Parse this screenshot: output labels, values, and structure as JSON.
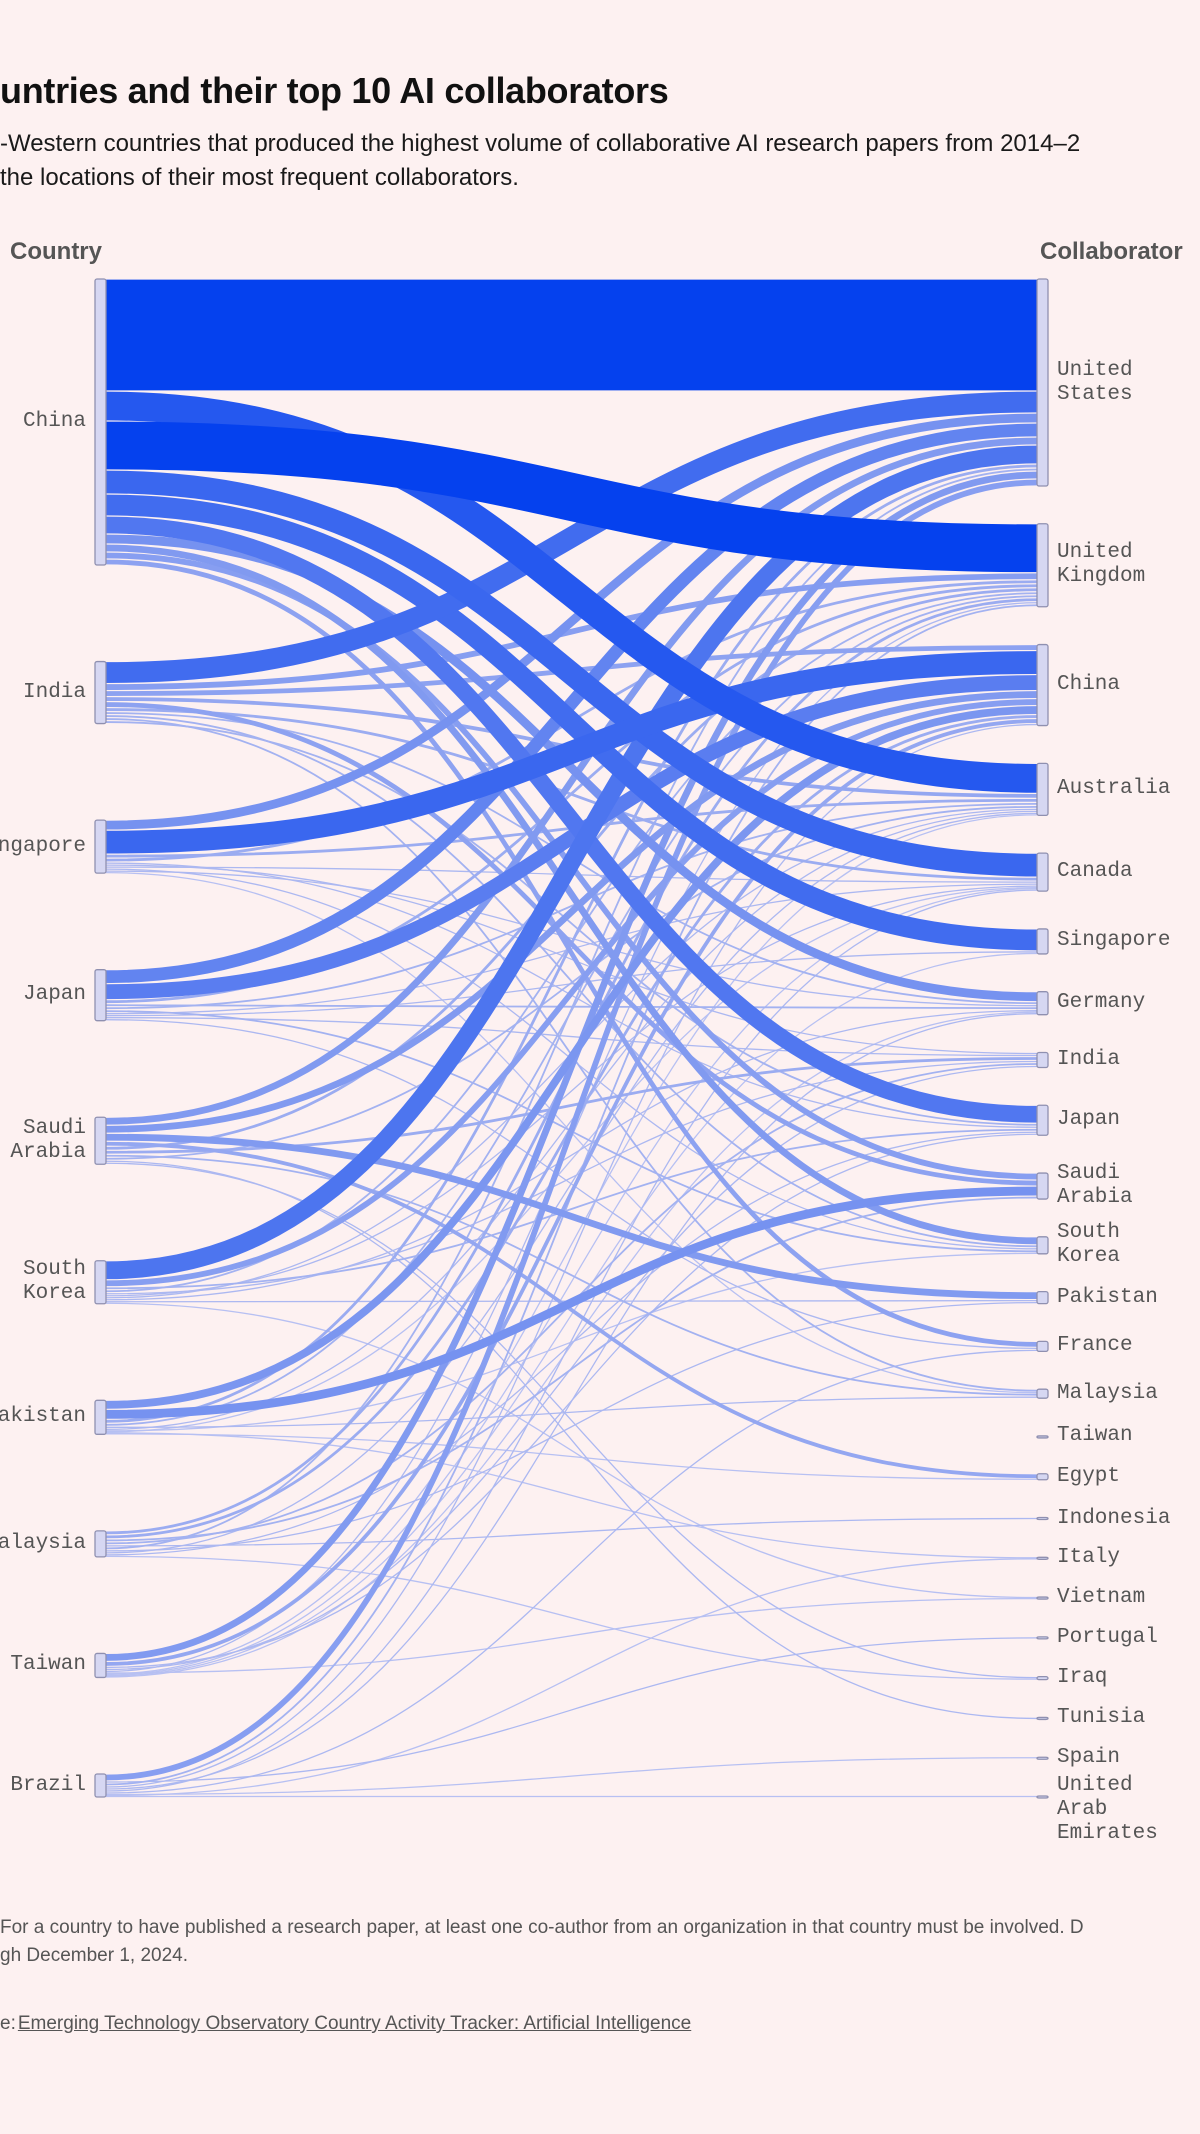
{
  "header": {
    "title_visible": "untries and their top 10 AI collaborators",
    "subtitle_line1_visible": "-Western countries that produced the highest volume of collaborative AI research papers from 2014–2",
    "subtitle_line2_visible": "the locations of their most frequent collaborators."
  },
  "footer": {
    "note_line1_visible": "For a country to have published a research paper, at least one co-author from an organization in that country must be involved. D",
    "note_line2_visible": "gh December 1, 2024.",
    "source_prefix_visible": "e: ",
    "source_link": "Emerging Technology Observatory Country Activity Tracker: Artificial Intelligence"
  },
  "colors": {
    "background": "#fdf1f1",
    "flow_strong": "#0541ee",
    "flow_light": "#cdd0f2",
    "node_fill": "#d6d7f2",
    "node_stroke": "#8f90b0"
  },
  "chart_data": {
    "type": "sankey",
    "left_axis_label": "Country",
    "right_axis_label": "Collaborator",
    "value_note": "relative link weights estimated from band thickness",
    "sources": [
      "China",
      "India",
      "Singapore",
      "Japan",
      "Saudi\nArabia",
      "South\nKorea",
      "Pakistan",
      "Malaysia",
      "Taiwan",
      "Brazil"
    ],
    "targets": [
      "United\nStates",
      "United\nKingdom",
      "China",
      "Australia",
      "Canada",
      "Singapore",
      "Germany",
      "India",
      "Japan",
      "Saudi\nArabia",
      "South\nKorea",
      "Pakistan",
      "France",
      "Malaysia",
      "Taiwan",
      "Egypt",
      "Indonesia",
      "Italy",
      "Vietnam",
      "Portugal",
      "Iraq",
      "Tunisia",
      "Spain",
      "United\nArab\nEmirates"
    ],
    "links": [
      [
        "China",
        "United\nStates",
        112
      ],
      [
        "China",
        "Australia",
        30
      ],
      [
        "China",
        "United\nKingdom",
        49
      ],
      [
        "China",
        "Canada",
        24
      ],
      [
        "China",
        "Singapore",
        22
      ],
      [
        "China",
        "Japan",
        18
      ],
      [
        "China",
        "Germany",
        10
      ],
      [
        "China",
        "South\nKorea",
        8
      ],
      [
        "China",
        "Saudi\nArabia",
        7
      ],
      [
        "China",
        "France",
        6
      ],
      [
        "India",
        "United\nStates",
        22
      ],
      [
        "India",
        "United\nKingdom",
        7
      ],
      [
        "India",
        "China",
        6
      ],
      [
        "India",
        "Australia",
        5
      ],
      [
        "India",
        "Saudi\nArabia",
        6
      ],
      [
        "India",
        "Canada",
        4
      ],
      [
        "India",
        "Germany",
        3
      ],
      [
        "India",
        "South\nKorea",
        3
      ],
      [
        "India",
        "Malaysia",
        3
      ],
      [
        "India",
        "Japan",
        3
      ],
      [
        "Singapore",
        "United\nStates",
        10
      ],
      [
        "Singapore",
        "China",
        24
      ],
      [
        "Singapore",
        "Australia",
        4
      ],
      [
        "Singapore",
        "United\nKingdom",
        4
      ],
      [
        "Singapore",
        "Japan",
        2
      ],
      [
        "Singapore",
        "India",
        2
      ],
      [
        "Singapore",
        "Canada",
        2
      ],
      [
        "Singapore",
        "South\nKorea",
        2
      ],
      [
        "Singapore",
        "Germany",
        2
      ],
      [
        "Singapore",
        "Malaysia",
        1
      ],
      [
        "Japan",
        "United\nStates",
        14
      ],
      [
        "Japan",
        "China",
        16
      ],
      [
        "Japan",
        "United\nKingdom",
        4
      ],
      [
        "Japan",
        "Germany",
        3
      ],
      [
        "Japan",
        "Australia",
        3
      ],
      [
        "Japan",
        "South\nKorea",
        3
      ],
      [
        "Japan",
        "Canada",
        2
      ],
      [
        "Japan",
        "Singapore",
        2
      ],
      [
        "Japan",
        "India",
        2
      ],
      [
        "Japan",
        "France",
        2
      ],
      [
        "Saudi\nArabia",
        "United\nStates",
        8
      ],
      [
        "Saudi\nArabia",
        "China",
        8
      ],
      [
        "Saudi\nArabia",
        "Pakistan",
        8
      ],
      [
        "Saudi\nArabia",
        "Egypt",
        5
      ],
      [
        "Saudi\nArabia",
        "United\nKingdom",
        4
      ],
      [
        "Saudi\nArabia",
        "India",
        4
      ],
      [
        "Saudi\nArabia",
        "Malaysia",
        3
      ],
      [
        "Saudi\nArabia",
        "Australia",
        3
      ],
      [
        "Saudi\nArabia",
        "Tunisia",
        2
      ],
      [
        "Saudi\nArabia",
        "Iraq",
        2
      ],
      [
        "South\nKorea",
        "United\nStates",
        19
      ],
      [
        "South\nKorea",
        "China",
        7
      ],
      [
        "South\nKorea",
        "Japan",
        3
      ],
      [
        "South\nKorea",
        "United\nKingdom",
        3
      ],
      [
        "South\nKorea",
        "India",
        2
      ],
      [
        "South\nKorea",
        "Canada",
        2
      ],
      [
        "South\nKorea",
        "Australia",
        2
      ],
      [
        "South\nKorea",
        "Germany",
        2
      ],
      [
        "South\nKorea",
        "Pakistan",
        2
      ],
      [
        "South\nKorea",
        "Vietnam",
        1
      ],
      [
        "Pakistan",
        "China",
        9
      ],
      [
        "Pakistan",
        "Saudi\nArabia",
        10
      ],
      [
        "Pakistan",
        "United\nStates",
        4
      ],
      [
        "Pakistan",
        "United\nKingdom",
        3
      ],
      [
        "Pakistan",
        "Malaysia",
        2
      ],
      [
        "Pakistan",
        "Australia",
        2
      ],
      [
        "Pakistan",
        "South\nKorea",
        1
      ],
      [
        "Pakistan",
        "Canada",
        1
      ],
      [
        "Pakistan",
        "Italy",
        1
      ],
      [
        "Pakistan",
        "Egypt",
        1
      ],
      [
        "Malaysia",
        "United\nKingdom",
        4
      ],
      [
        "Malaysia",
        "China",
        4
      ],
      [
        "Malaysia",
        "Saudi\nArabia",
        3
      ],
      [
        "Malaysia",
        "India",
        3
      ],
      [
        "Malaysia",
        "Indonesia",
        2
      ],
      [
        "Malaysia",
        "United\nStates",
        3
      ],
      [
        "Malaysia",
        "Pakistan",
        2
      ],
      [
        "Malaysia",
        "Australia",
        2
      ],
      [
        "Malaysia",
        "Japan",
        2
      ],
      [
        "Malaysia",
        "Iraq",
        1
      ],
      [
        "Taiwan",
        "United\nStates",
        8
      ],
      [
        "Taiwan",
        "China",
        5
      ],
      [
        "Taiwan",
        "Japan",
        2
      ],
      [
        "Taiwan",
        "India",
        2
      ],
      [
        "Taiwan",
        "United\nKingdom",
        2
      ],
      [
        "Taiwan",
        "Vietnam",
        1
      ],
      [
        "Taiwan",
        "Australia",
        1
      ],
      [
        "Taiwan",
        "Canada",
        1
      ],
      [
        "Taiwan",
        "Singapore",
        1
      ],
      [
        "Taiwan",
        "Germany",
        1
      ],
      [
        "Brazil",
        "United\nStates",
        7
      ],
      [
        "Brazil",
        "Portugal",
        2
      ],
      [
        "Brazil",
        "United\nKingdom",
        3
      ],
      [
        "Brazil",
        "China",
        2
      ],
      [
        "Brazil",
        "Germany",
        2
      ],
      [
        "Brazil",
        "Canada",
        2
      ],
      [
        "Brazil",
        "France",
        2
      ],
      [
        "Brazil",
        "Spain",
        1
      ],
      [
        "Brazil",
        "Italy",
        1
      ],
      [
        "Brazil",
        "United\nArab\nEmirates",
        1
      ]
    ]
  }
}
